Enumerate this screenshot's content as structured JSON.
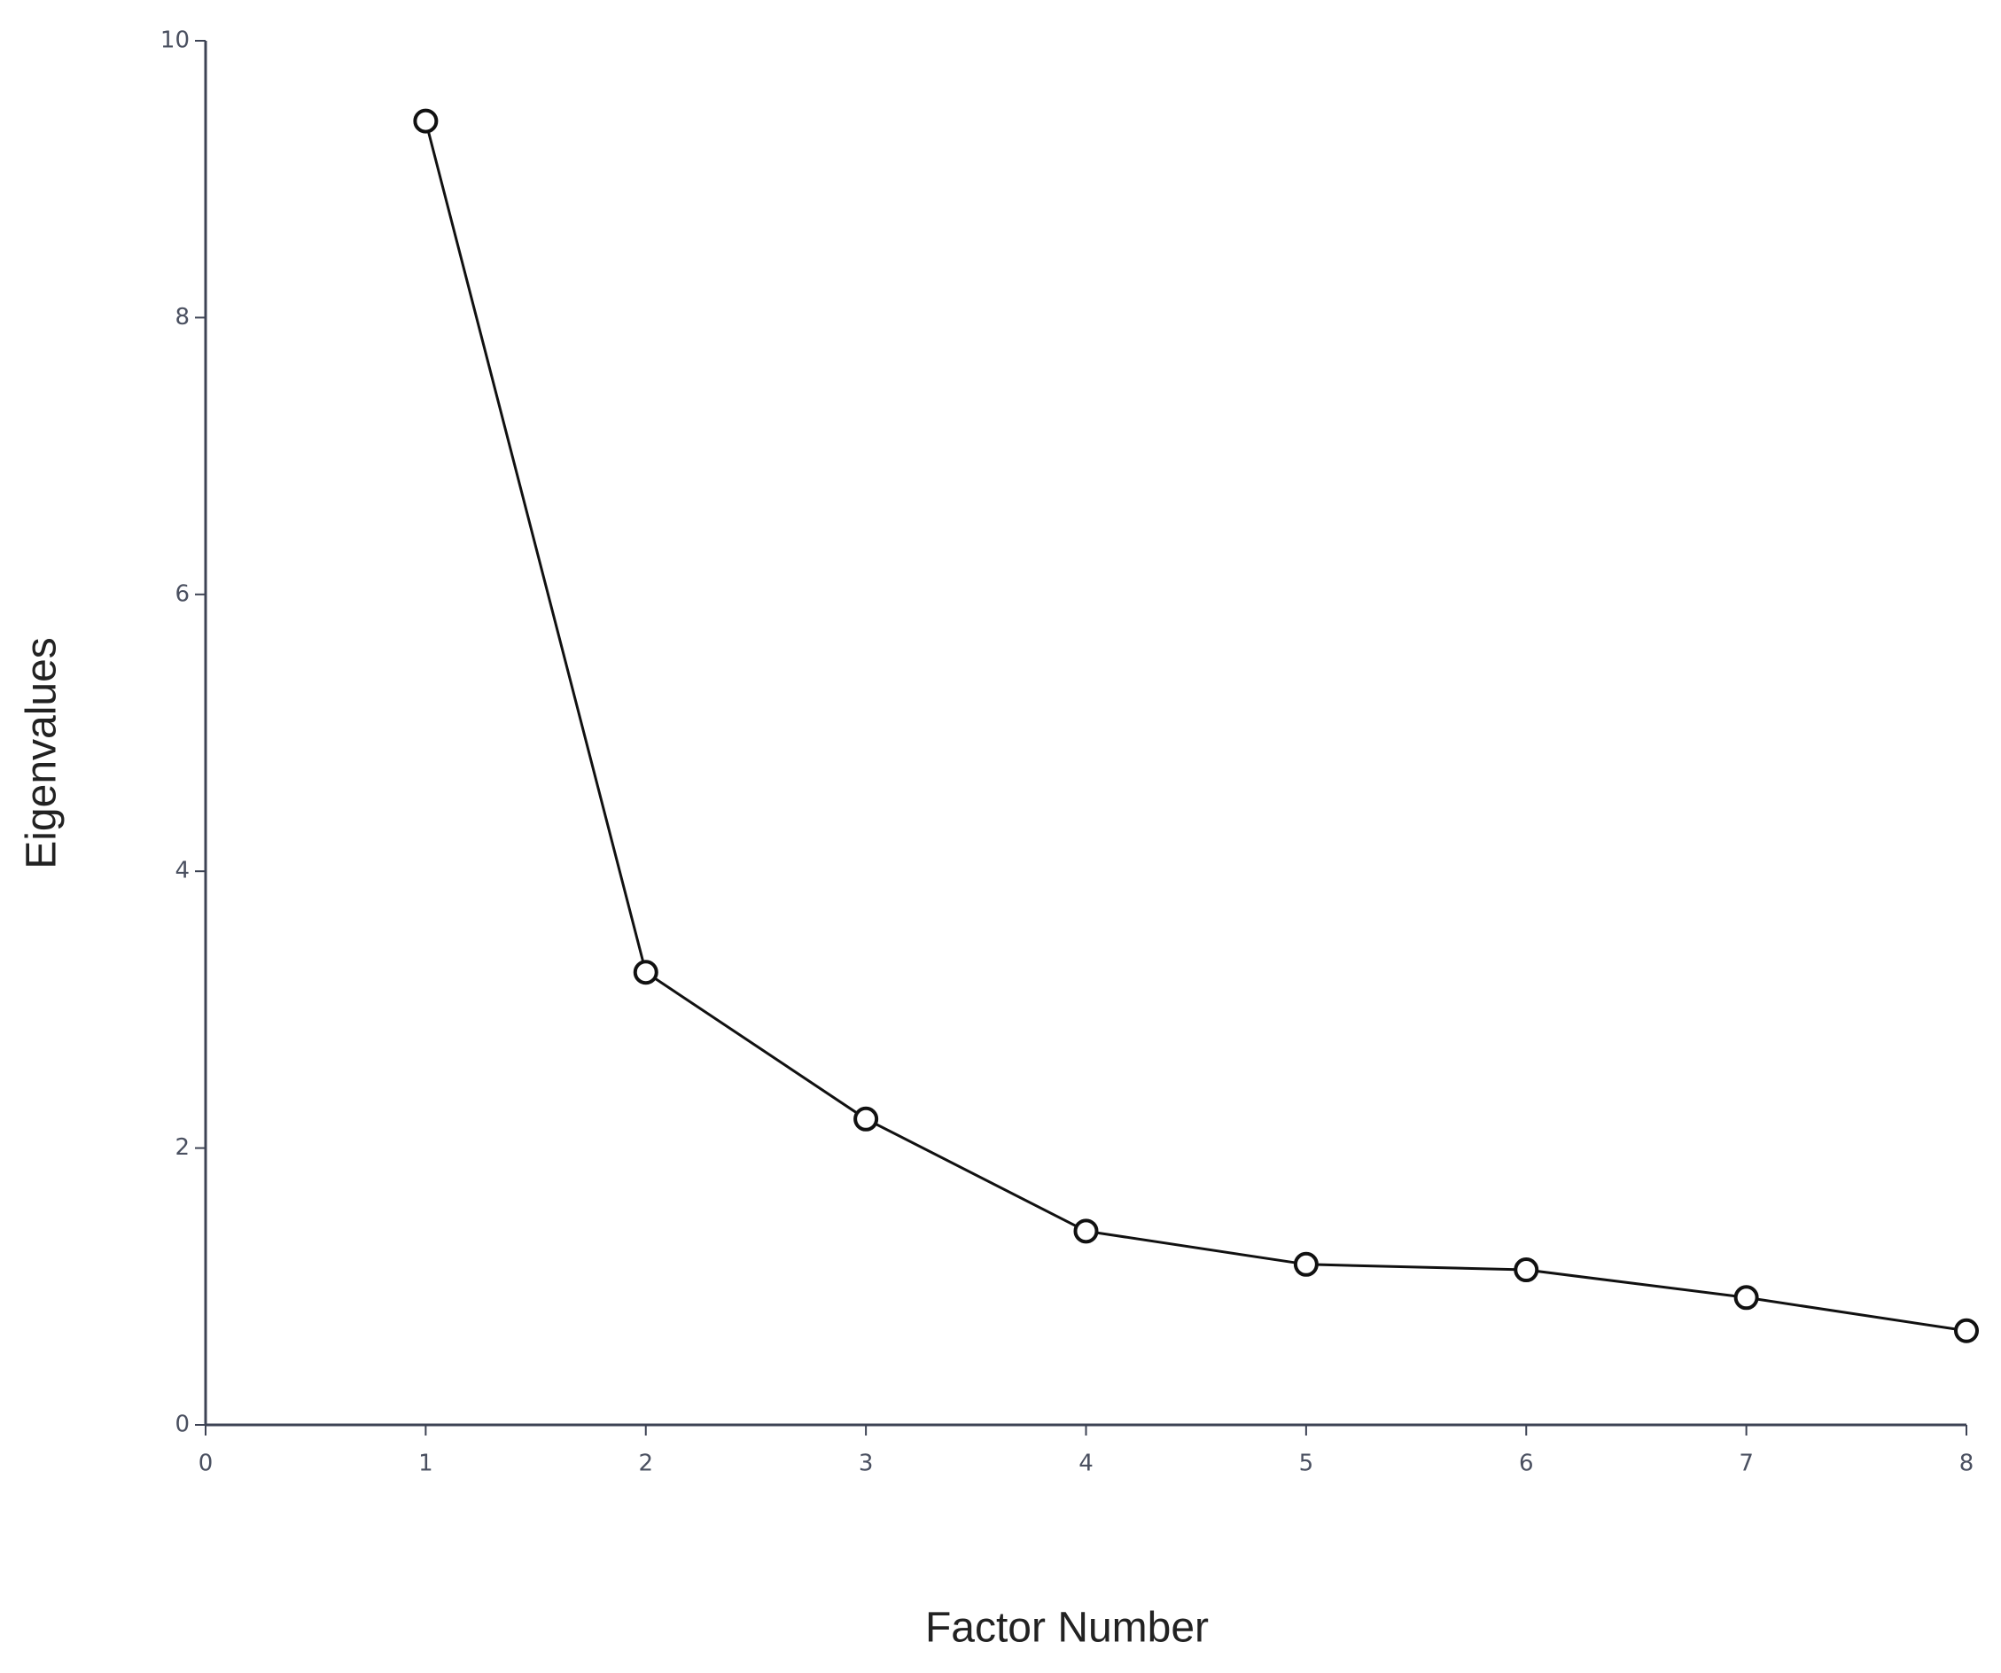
{
  "chart_data": {
    "type": "line",
    "x_label": "Factor Number",
    "y_label": "Eigenvalues",
    "x": [
      1,
      2,
      3,
      4,
      5,
      6,
      7,
      8
    ],
    "series": [
      {
        "color": "#111111",
        "values": [
          9.42,
          3.27,
          2.21,
          1.4,
          1.16,
          1.12,
          0.92,
          0.68
        ]
      }
    ],
    "xlim": [
      0,
      8
    ],
    "xticks": [
      0,
      1,
      2,
      3,
      4,
      5,
      6,
      7,
      8
    ],
    "ylim": [
      0,
      10
    ],
    "yticks": [
      0,
      2,
      4,
      6,
      8,
      10
    ],
    "grid": false
  }
}
